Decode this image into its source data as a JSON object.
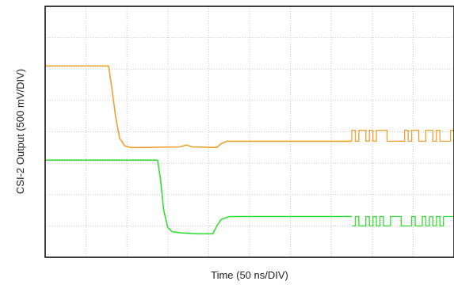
{
  "chart_data": {
    "type": "line",
    "title": "",
    "xlabel": "Time (50 ns/DIV)",
    "ylabel": "CSI-2 Output (500 mV/DIV)",
    "grid": true,
    "grid_style": "dotted",
    "xlim": [
      0,
      10
    ],
    "ylim": [
      0,
      8
    ],
    "x_unit": "divisions",
    "y_unit": "divisions",
    "colors": {
      "series_1": "#f0a030",
      "series_2": "#33dd33",
      "grid": "#c8c8c8",
      "frame": "#000000"
    },
    "series": [
      {
        "color": "#f0a030",
        "x": [
          0,
          1.55,
          1.62,
          1.72,
          1.82,
          1.95,
          2.1,
          2.4,
          3.3,
          3.45,
          3.6,
          4.2,
          4.3,
          4.45,
          7.5
        ],
        "y": [
          6.1,
          6.1,
          5.5,
          4.5,
          3.8,
          3.55,
          3.5,
          3.5,
          3.52,
          3.58,
          3.52,
          3.5,
          3.62,
          3.7,
          3.7
        ],
        "burst": {
          "x_start": 7.5,
          "x_end": 10,
          "low": 3.7,
          "high": 4.05,
          "pattern": [
            1,
            0,
            1,
            1,
            0,
            1,
            0,
            1,
            1,
            1,
            0,
            0,
            0,
            0,
            0,
            1,
            0,
            1,
            1,
            0,
            0,
            1,
            1,
            0,
            1,
            0,
            0,
            0,
            1
          ]
        }
      },
      {
        "color": "#33dd33",
        "x": [
          0,
          2.75,
          2.82,
          2.9,
          3.0,
          3.1,
          3.3,
          3.7,
          4.1,
          4.2,
          4.3,
          4.5,
          7.5
        ],
        "y": [
          3.1,
          3.1,
          2.5,
          1.5,
          0.95,
          0.82,
          0.78,
          0.75,
          0.75,
          1.0,
          1.2,
          1.3,
          1.3
        ],
        "burst": {
          "x_start": 7.5,
          "x_end": 10,
          "low": 1.0,
          "high": 1.3,
          "pattern": [
            0,
            1,
            0,
            0,
            1,
            0,
            1,
            0,
            1,
            0,
            0,
            1,
            1,
            1,
            0,
            0,
            0,
            1,
            0,
            0,
            1,
            0,
            1,
            0,
            1,
            0,
            1,
            1,
            1
          ]
        }
      }
    ]
  }
}
